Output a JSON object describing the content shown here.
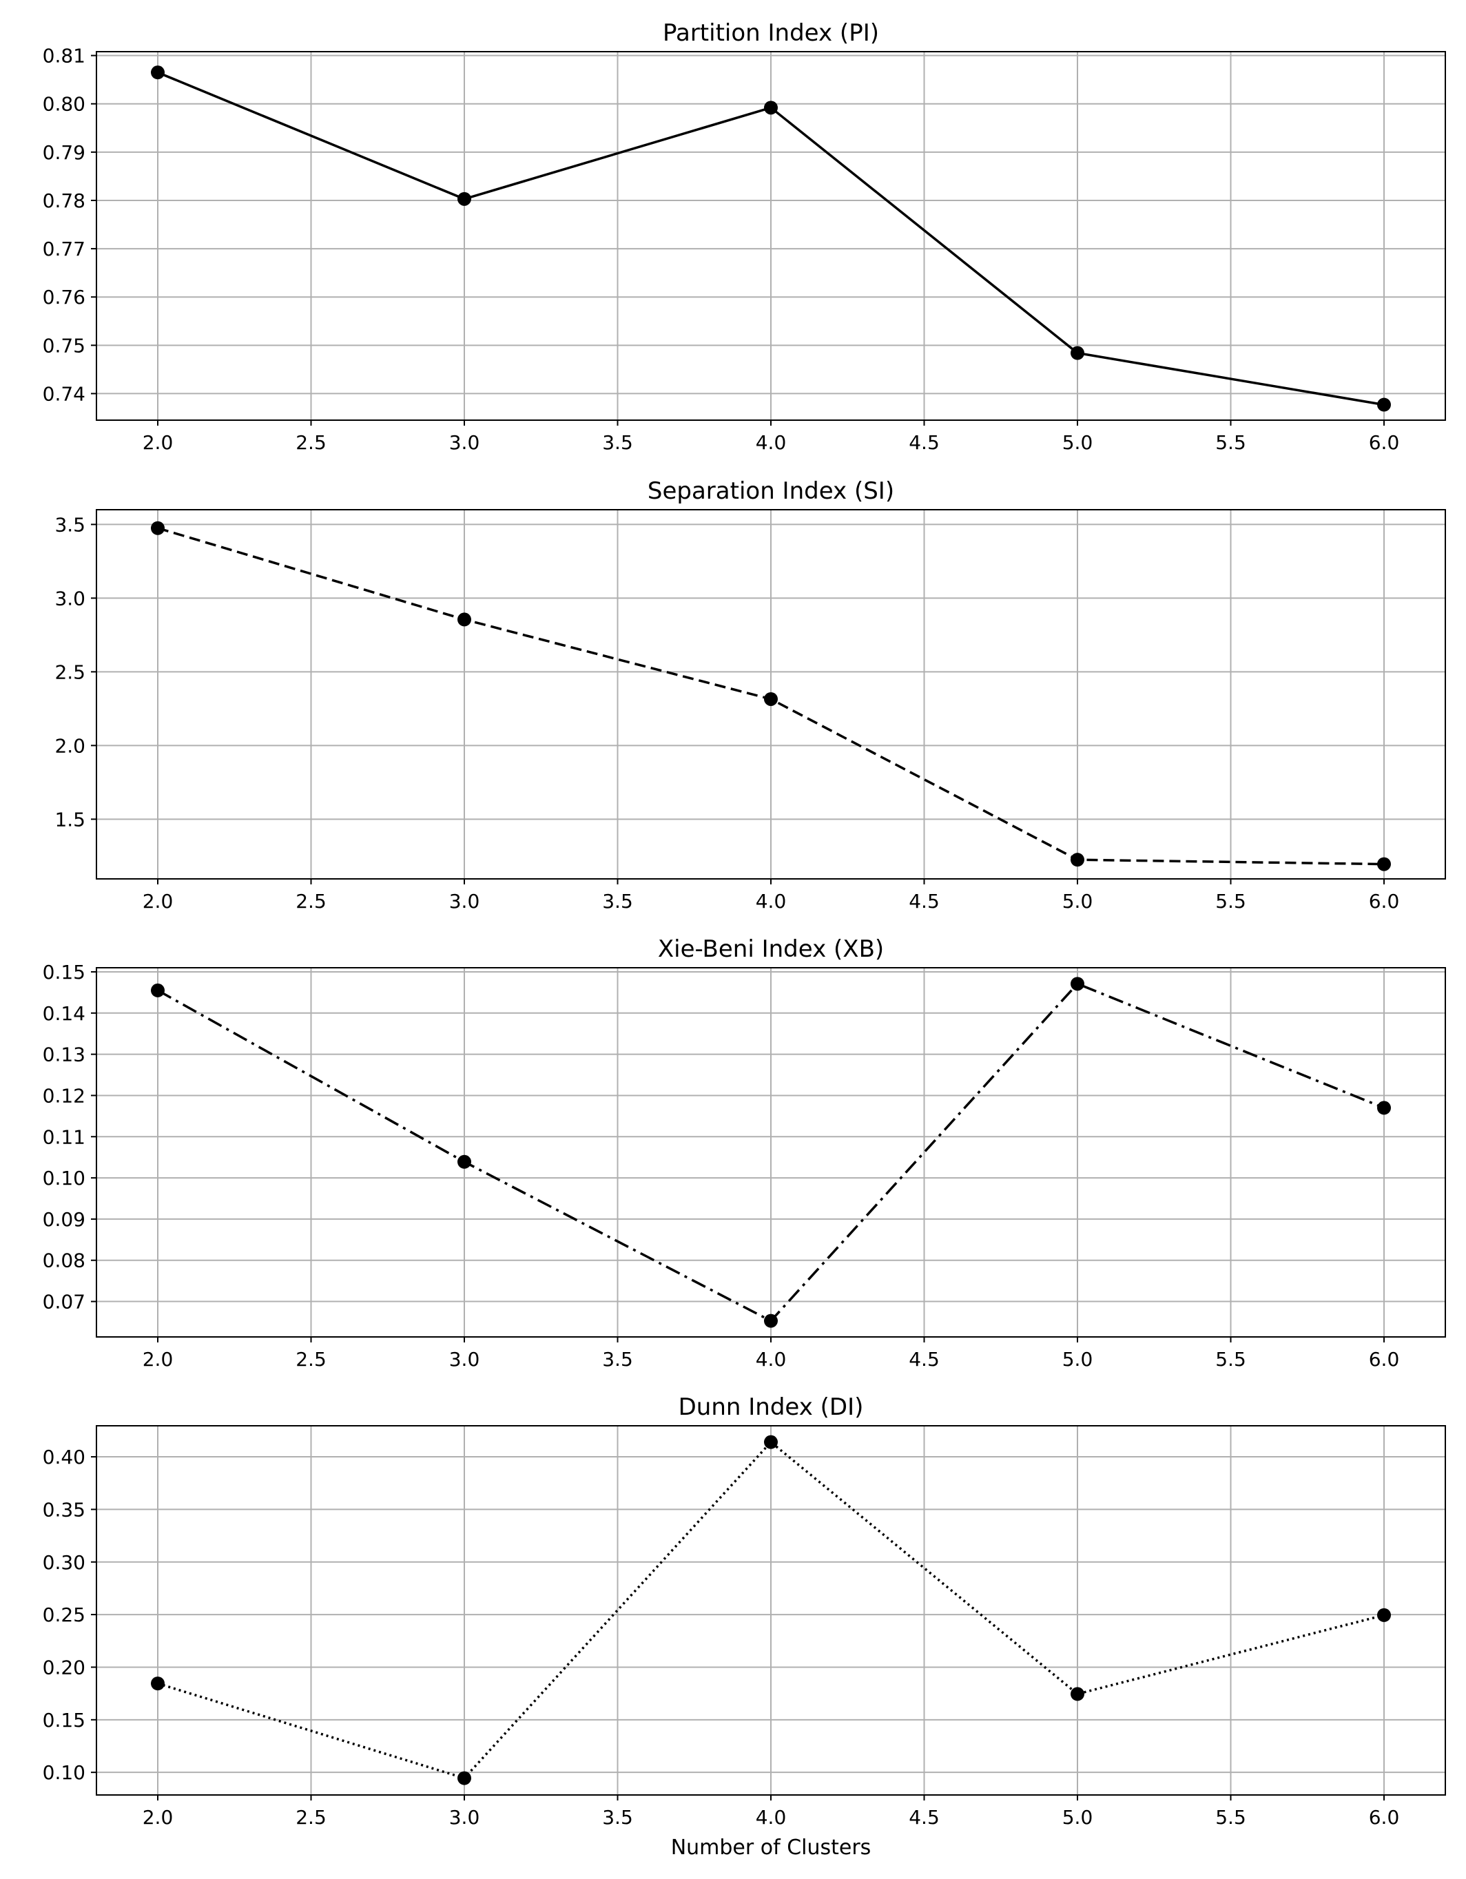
{
  "chart_data": [
    {
      "type": "line",
      "title": "Partition Index (PI)",
      "xlabel": "",
      "ylabel": "",
      "x": [
        2.0,
        3.0,
        4.0,
        5.0,
        6.0
      ],
      "values": [
        0.8065,
        0.7803,
        0.7992,
        0.7484,
        0.7377
      ],
      "line_style": "solid",
      "marker": "circle",
      "color": "#000000",
      "grid": true,
      "xlim": [
        1.8,
        6.2
      ],
      "ylim": [
        0.7345,
        0.8108
      ],
      "xticks": [
        2.0,
        2.5,
        3.0,
        3.5,
        4.0,
        4.5,
        5.0,
        5.5,
        6.0
      ],
      "xtick_labels": [
        "2.0",
        "2.5",
        "3.0",
        "3.5",
        "4.0",
        "4.5",
        "5.0",
        "5.5",
        "6.0"
      ],
      "yticks": [
        0.74,
        0.75,
        0.76,
        0.77,
        0.78,
        0.79,
        0.8,
        0.81
      ],
      "ytick_labels": [
        "0.74",
        "0.75",
        "0.76",
        "0.77",
        "0.78",
        "0.79",
        "0.80",
        "0.81"
      ]
    },
    {
      "type": "line",
      "title": "Separation Index (SI)",
      "xlabel": "",
      "ylabel": "",
      "x": [
        2.0,
        3.0,
        4.0,
        5.0,
        6.0
      ],
      "values": [
        3.475,
        2.855,
        2.315,
        1.225,
        1.195
      ],
      "line_style": "dashed",
      "marker": "circle",
      "color": "#000000",
      "grid": true,
      "xlim": [
        1.8,
        6.2
      ],
      "ylim": [
        1.095,
        3.6
      ],
      "xticks": [
        2.0,
        2.5,
        3.0,
        3.5,
        4.0,
        4.5,
        5.0,
        5.5,
        6.0
      ],
      "xtick_labels": [
        "2.0",
        "2.5",
        "3.0",
        "3.5",
        "4.0",
        "4.5",
        "5.0",
        "5.5",
        "6.0"
      ],
      "yticks": [
        1.5,
        2.0,
        2.5,
        3.0,
        3.5
      ],
      "ytick_labels": [
        "1.5",
        "2.0",
        "2.5",
        "3.0",
        "3.5"
      ]
    },
    {
      "type": "line",
      "title": "Xie-Beni Index (XB)",
      "xlabel": "",
      "ylabel": "",
      "x": [
        2.0,
        3.0,
        4.0,
        5.0,
        6.0
      ],
      "values": [
        0.1455,
        0.1039,
        0.0653,
        0.1471,
        0.117
      ],
      "line_style": "dashdot",
      "marker": "circle",
      "color": "#000000",
      "grid": true,
      "xlim": [
        1.8,
        6.2
      ],
      "ylim": [
        0.0614,
        0.151
      ],
      "xticks": [
        2.0,
        2.5,
        3.0,
        3.5,
        4.0,
        4.5,
        5.0,
        5.5,
        6.0
      ],
      "xtick_labels": [
        "2.0",
        "2.5",
        "3.0",
        "3.5",
        "4.0",
        "4.5",
        "5.0",
        "5.5",
        "6.0"
      ],
      "yticks": [
        0.07,
        0.08,
        0.09,
        0.1,
        0.11,
        0.12,
        0.13,
        0.14,
        0.15
      ],
      "ytick_labels": [
        "0.07",
        "0.08",
        "0.09",
        "0.10",
        "0.11",
        "0.12",
        "0.13",
        "0.14",
        "0.15"
      ]
    },
    {
      "type": "line",
      "title": "Dunn Index (DI)",
      "xlabel": "Number of Clusters",
      "ylabel": "",
      "x": [
        2.0,
        3.0,
        4.0,
        5.0,
        6.0
      ],
      "values": [
        0.1845,
        0.0945,
        0.414,
        0.1745,
        0.2495
      ],
      "line_style": "dotted",
      "marker": "circle",
      "color": "#000000",
      "grid": true,
      "xlim": [
        1.8,
        6.2
      ],
      "ylim": [
        0.0785,
        0.4295
      ],
      "xticks": [
        2.0,
        2.5,
        3.0,
        3.5,
        4.0,
        4.5,
        5.0,
        5.5,
        6.0
      ],
      "xtick_labels": [
        "2.0",
        "2.5",
        "3.0",
        "3.5",
        "4.0",
        "4.5",
        "5.0",
        "5.5",
        "6.0"
      ],
      "yticks": [
        0.1,
        0.15,
        0.2,
        0.25,
        0.3,
        0.35,
        0.4
      ],
      "ytick_labels": [
        "0.10",
        "0.15",
        "0.20",
        "0.25",
        "0.30",
        "0.35",
        "0.40"
      ]
    }
  ]
}
